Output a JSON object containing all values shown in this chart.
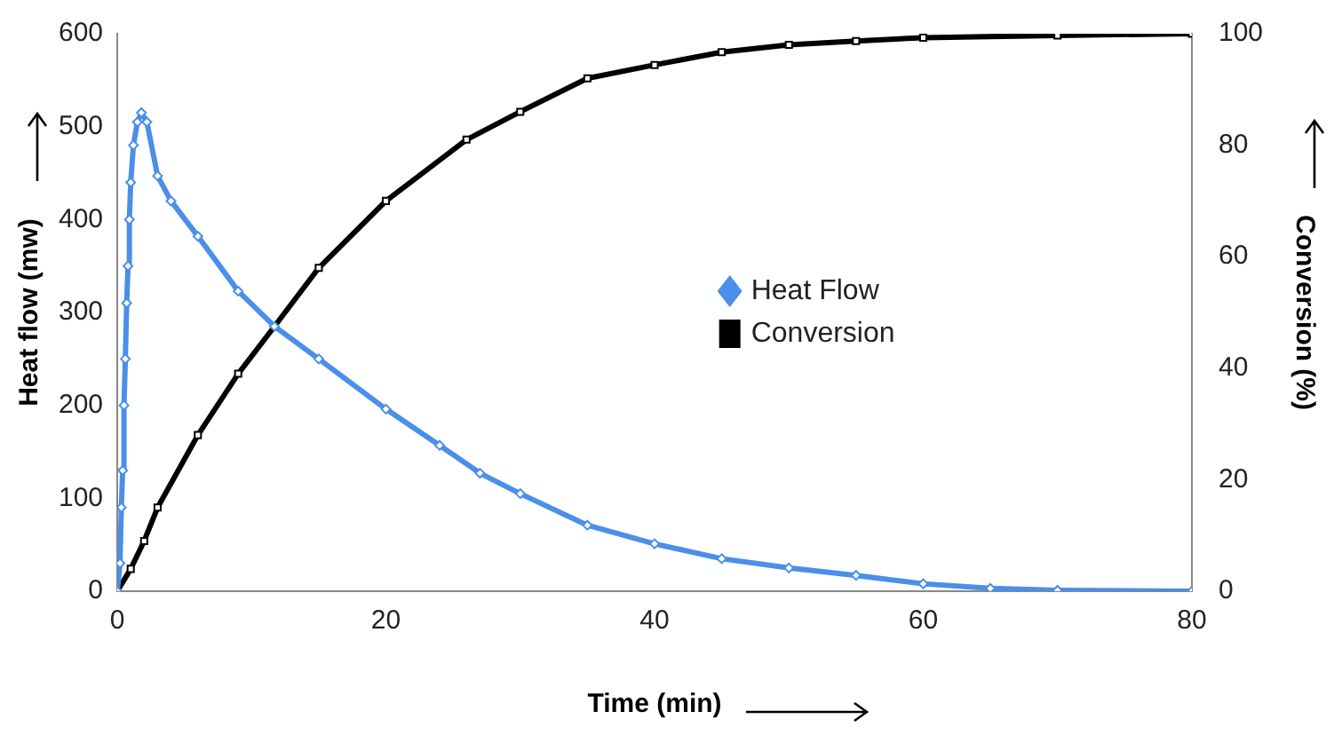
{
  "chart_data": {
    "type": "line",
    "xlabel": "Time (min)",
    "ylabel": "Heat flow (mw)",
    "y2label": "Conversion (%)",
    "xlim": [
      0,
      80
    ],
    "xticks": [
      0,
      20,
      40,
      60,
      80
    ],
    "ylim": [
      0,
      600
    ],
    "yticks": [
      0,
      100,
      200,
      300,
      400,
      500,
      600
    ],
    "y2lim": [
      0,
      100
    ],
    "y2ticks": [
      0,
      20,
      40,
      60,
      80,
      100
    ],
    "grid": false,
    "legend": "right",
    "line_style": "solid",
    "series": [
      {
        "name": "Heat Flow",
        "color": "#4a8fe8",
        "marker": "diamond",
        "x": [
          0,
          0.2,
          0.3,
          0.4,
          0.5,
          0.6,
          0.7,
          0.8,
          0.9,
          1.0,
          1.2,
          1.5,
          1.8,
          2.2,
          3,
          4,
          6,
          9,
          11.7,
          15,
          20,
          24,
          27,
          30,
          35,
          40,
          45,
          50,
          55,
          60,
          65,
          70,
          80
        ],
        "values": [
          0,
          30,
          90,
          130,
          200,
          250,
          310,
          350,
          400,
          440,
          480,
          505,
          515,
          505,
          447,
          420,
          382,
          323,
          285,
          250,
          196,
          157,
          127,
          105,
          71,
          51,
          35,
          25,
          17,
          8,
          3,
          1,
          0
        ]
      },
      {
        "name": "Conversion",
        "color": "#000000",
        "marker": "square",
        "axis": "y2",
        "x": [
          0,
          1,
          2,
          3,
          6,
          9,
          11.7,
          15,
          20,
          26,
          30,
          35,
          40,
          45,
          50,
          55,
          60,
          70,
          80
        ],
        "values": [
          0,
          4,
          9,
          15,
          28,
          39,
          47.5,
          58,
          70,
          81,
          86,
          92,
          94.4,
          96.7,
          98,
          98.7,
          99.3,
          99.7,
          100
        ]
      }
    ]
  }
}
